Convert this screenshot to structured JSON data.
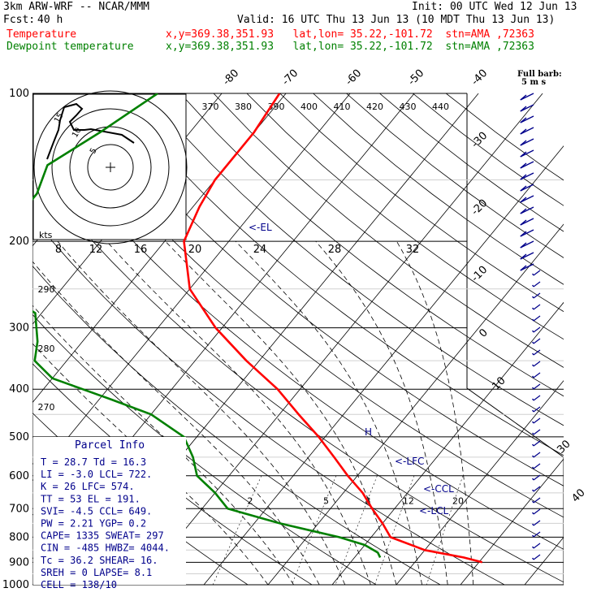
{
  "header": {
    "model": "3km ARW-WRF -- NCAR/MMM",
    "init": "Init: 00 UTC Wed 12 Jun 13",
    "fcst_label": "Fcst:",
    "fcst_value": "40 h",
    "valid": "Valid: 16 UTC Thu 13 Jun 13 (10 MDT Thu 13 Jun 13)",
    "temp_label": "Temperature",
    "dew_label": "Dewpoint temperature",
    "loc_temp": "x,y=369.38,351.93   lat,lon= 35.22,-101.72  stn=AMA ,72363",
    "loc_dew": "x,y=369.38,351.93   lat,lon= 35.22,-101.72  stn=AMA ,72363",
    "temp_color": "#ff0000",
    "dew_color": "#008000"
  },
  "chart_data": {
    "type": "line",
    "subtype": "skew-T log-p",
    "pressure_levels": [
      100,
      200,
      300,
      400,
      500,
      600,
      700,
      800,
      900,
      1000
    ],
    "temperature_ticks": [
      -80,
      -70,
      -60,
      -50,
      -40,
      -30,
      -20,
      -10,
      0,
      10,
      20,
      30,
      40
    ],
    "theta_labels": [
      370,
      380,
      390,
      400,
      410,
      420,
      430,
      440
    ],
    "theta_side_labels": [
      290,
      280,
      270
    ],
    "mixing_ratio_labels": [
      2,
      5,
      8,
      12,
      20
    ],
    "hodo_unit": "kts",
    "hodo_speed_labels": [
      "8",
      "12",
      "16",
      "20",
      "24",
      "28",
      "32"
    ],
    "hodo_ring_labels": [
      "15",
      "10",
      "5"
    ],
    "barb_title": "Full barb:",
    "barb_sub": "5 m s",
    "series": [
      {
        "name": "Temperature",
        "color": "#ff0000",
        "points": [
          [
            100,
            -61
          ],
          [
            120,
            -60
          ],
          [
            150,
            -60
          ],
          [
            170,
            -59
          ],
          [
            200,
            -57
          ],
          [
            250,
            -50
          ],
          [
            300,
            -41
          ],
          [
            350,
            -32
          ],
          [
            400,
            -23.5
          ],
          [
            450,
            -17
          ],
          [
            500,
            -11
          ],
          [
            550,
            -6
          ],
          [
            600,
            -1.5
          ],
          [
            650,
            3
          ],
          [
            700,
            6.5
          ],
          [
            750,
            10
          ],
          [
            800,
            13
          ],
          [
            850,
            20
          ],
          [
            880,
            27
          ],
          [
            900,
            30.5
          ]
        ]
      },
      {
        "name": "Dewpoint temperature",
        "color": "#008000",
        "points": [
          [
            100,
            -80
          ],
          [
            120,
            -84
          ],
          [
            140,
            -88
          ],
          [
            160,
            -86
          ],
          [
            180,
            -86
          ],
          [
            200,
            -85
          ],
          [
            220,
            -87
          ],
          [
            250,
            -80
          ],
          [
            280,
            -71
          ],
          [
            320,
            -67
          ],
          [
            350,
            -65
          ],
          [
            380,
            -60
          ],
          [
            420,
            -48
          ],
          [
            450,
            -40
          ],
          [
            500,
            -32
          ],
          [
            550,
            -28
          ],
          [
            600,
            -25
          ],
          [
            650,
            -20
          ],
          [
            700,
            -16
          ],
          [
            750,
            -6
          ],
          [
            800,
            5
          ],
          [
            830,
            10
          ],
          [
            860,
            13
          ],
          [
            880,
            14
          ]
        ]
      }
    ],
    "annotations": [
      "<-EL",
      "<-LFC",
      "<-CCL",
      "<-LCL",
      "H"
    ]
  },
  "parcel": {
    "title": "Parcel Info",
    "rows": [
      "T  =   28.7 Td =  16.3",
      "LI =   -3.0 LCL=  722.",
      "K  =     26 LFC=  574.",
      "TT =     53 EL =  191.",
      "SVI=   -4.5 CCL=  649.",
      "PW =   2.21 YGP=   0.2",
      "CAPE=  1335 SWEAT=  297",
      "CIN =  -485 HWBZ= 4044.",
      "Tc =   36.2 SHEAR=  16.",
      "SREH =    0 LAPSE=  8.1",
      "CELL =  138/10"
    ]
  }
}
